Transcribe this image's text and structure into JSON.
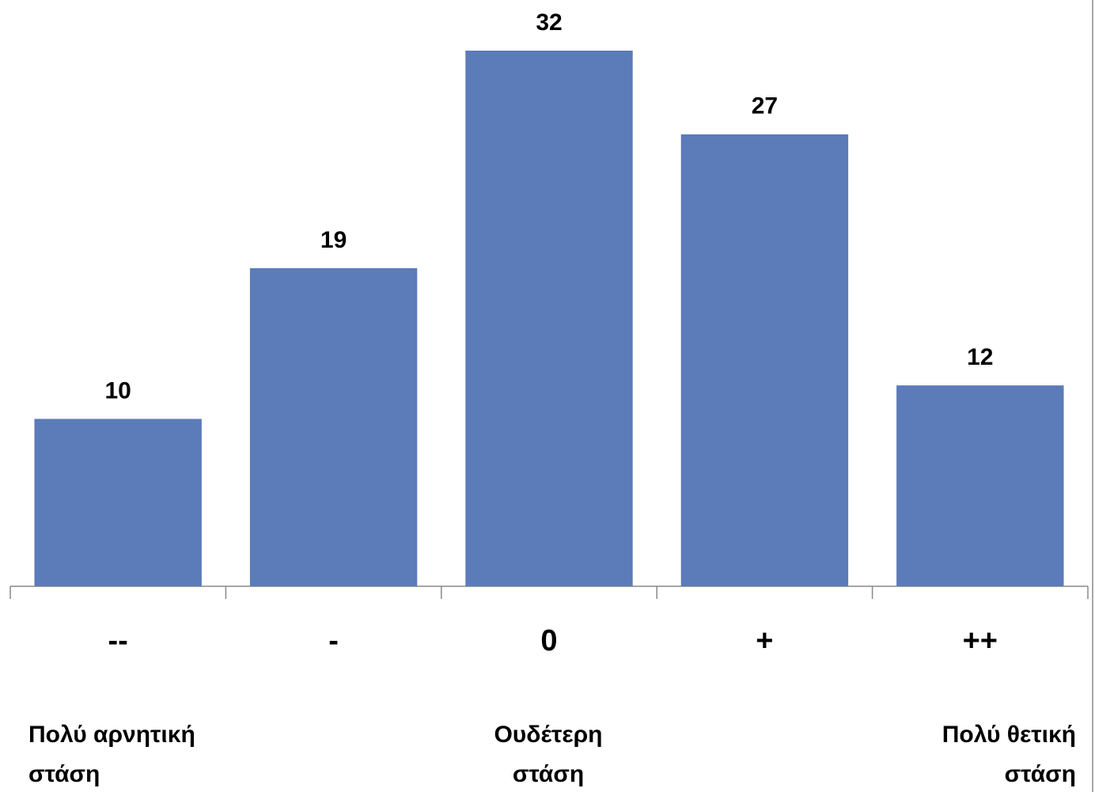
{
  "chart_data": {
    "type": "bar",
    "categories": [
      "--",
      "-",
      "0",
      "+",
      "++"
    ],
    "values": [
      10,
      19,
      32,
      27,
      12
    ],
    "color": "#5b7bb9",
    "annotations": [
      [
        "Πολύ αρνητική",
        "στάση"
      ],
      [
        "Ουδέτερη",
        "στάση"
      ],
      [
        "Πολύ θετική",
        "στάση"
      ]
    ]
  }
}
